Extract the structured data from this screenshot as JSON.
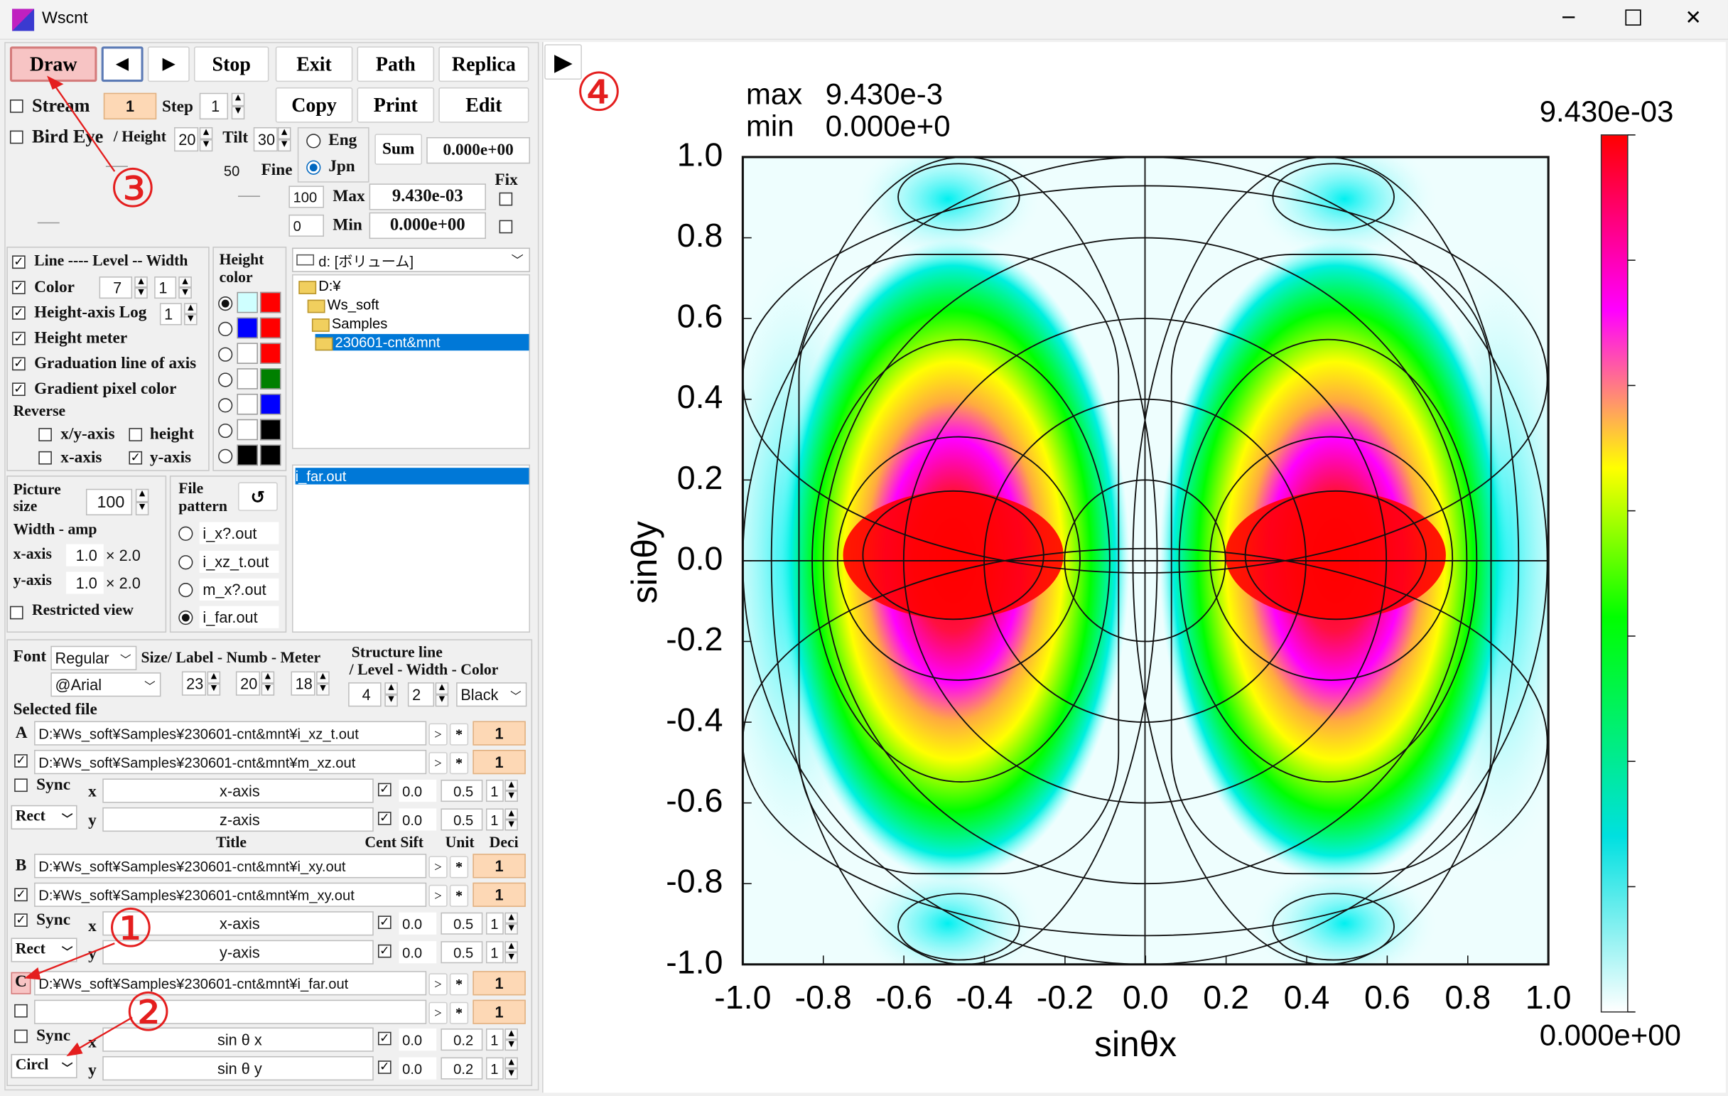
{
  "window": {
    "title": "Wscnt",
    "min_glyph": "─",
    "max_glyph": "☐",
    "close_glyph": "✕"
  },
  "toolbar": {
    "draw": "Draw",
    "prev": "◀",
    "next": "▶",
    "stop": "Stop",
    "exit": "Exit",
    "path": "Path",
    "replica": "Replica",
    "copy": "Copy",
    "print": "Print",
    "edit": "Edit",
    "sum": "Sum",
    "run": "▶"
  },
  "stream": {
    "label": "Stream",
    "value": "1",
    "step_label": "Step",
    "step_value": "1"
  },
  "bird": {
    "label": "Bird Eye",
    "height_label": "/ Height",
    "height_value": "20",
    "tilt_label": "Tilt",
    "tilt_value": "30",
    "fine_value": "50",
    "fine_label": "Fine"
  },
  "lang": {
    "eng": "Eng",
    "jpn": "Jpn"
  },
  "sum_value": "0.000e+00",
  "fix": {
    "label": "Fix",
    "max_left": "100",
    "max_label": "Max",
    "max_value": "9.430e-03",
    "min_left": "0",
    "min_label": "Min",
    "min_value": "0.000e+00"
  },
  "options": {
    "line": "Line ---- Level -- Width",
    "color": "Color",
    "color_v1": "7",
    "color_v2": "1",
    "log": "Height-axis Log",
    "log_v": "1",
    "meter": "Height meter",
    "grad": "Graduation line of axis",
    "gradient": "Gradient pixel color",
    "reverse": "Reverse",
    "xy": "x/y-axis",
    "height": "height",
    "x": "x-axis",
    "y": "y-axis"
  },
  "height_color": {
    "label": "Height color"
  },
  "drive": "d: [ボリューム]",
  "tree": [
    "D:¥",
    "Ws_soft",
    "Samples",
    "230601-cnt&mnt"
  ],
  "files": [
    "i_far.out"
  ],
  "picture": {
    "label": "Picture size",
    "value": "100",
    "wa": "Width - amp",
    "xaxis": "x-axis",
    "xv": "1.0",
    "xm": "× 2.0",
    "yaxis": "y-axis",
    "yv": "1.0",
    "ym": "× 2.0",
    "restricted": "Restricted view"
  },
  "pattern": {
    "label": "File pattern",
    "refresh": "↺",
    "opts": [
      "i_x?.out",
      "i_xz_t.out",
      "m_x?.out",
      "i_far.out"
    ]
  },
  "font": {
    "label": "Font",
    "style": "Regular",
    "face": "@Arial",
    "size_label": "Size/ Label - Numb - Meter",
    "s1": "23",
    "s2": "20",
    "s3": "18",
    "struct_label": "Structure line",
    "struct_sub": "/ Level - Width - Color",
    "lv": "4",
    "wv": "2",
    "cv": "Black"
  },
  "selected": {
    "label": "Selected file",
    "title": "Title",
    "cols": "Cent Sift",
    "unit": "Unit",
    "deci": "Deci"
  },
  "rowsA": {
    "tag": "A",
    "file1": "D:¥Ws_soft¥Samples¥230601-cnt&mnt¥i_xz_t.out",
    "file2": "D:¥Ws_soft¥Samples¥230601-cnt&mnt¥m_xz.out",
    "n1": "1",
    "n2": "1",
    "sync": "Sync",
    "mode": "Rect",
    "xt": "x-axis",
    "yt": "z-axis",
    "c": "0.0",
    "u": "0.5",
    "d": "1"
  },
  "rowsB": {
    "tag": "B",
    "file1": "D:¥Ws_soft¥Samples¥230601-cnt&mnt¥i_xy.out",
    "file2": "D:¥Ws_soft¥Samples¥230601-cnt&mnt¥m_xy.out",
    "n1": "1",
    "n2": "1",
    "sync": "Sync",
    "mode": "Rect",
    "xt": "x-axis",
    "yt": "y-axis",
    "c": "0.0",
    "u": "0.5",
    "d": "1"
  },
  "rowsC": {
    "tag": "C",
    "file1": "D:¥Ws_soft¥Samples¥230601-cnt&mnt¥i_far.out",
    "file2": "",
    "n1": "1",
    "n2": "1",
    "sync": "Sync",
    "mode": "Circl",
    "xt": "sin θ x",
    "yt": "sin θ y",
    "c": "0.0",
    "u": "0.2",
    "d": "1"
  },
  "axis_letters": {
    "x": "x",
    "y": "y"
  },
  "row_btn": {
    "gt": ">",
    "star": "*"
  },
  "annotations": [
    "①",
    "②",
    "③",
    "④"
  ],
  "plot": {
    "max_label": "max",
    "max_value": "9.430e-3",
    "min_label": "min",
    "min_value": "0.000e+0",
    "xlabel": "sinθx",
    "ylabel": "sinθy",
    "cbar_max": "9.430e-03",
    "cbar_min": "0.000e+00"
  },
  "chart_data": {
    "type": "heatmap",
    "xlabel": "sinθx",
    "ylabel": "sinθy",
    "xlim": [
      -1.0,
      1.0
    ],
    "ylim": [
      -1.0,
      1.0
    ],
    "xticks": [
      "-1.0",
      "-0.8",
      "-0.6",
      "-0.4",
      "-0.2",
      "0.0",
      "0.2",
      "0.4",
      "0.6",
      "0.8",
      "1.0"
    ],
    "yticks": [
      "1.0",
      "0.8",
      "0.6",
      "0.4",
      "0.2",
      "0.0",
      "-0.2",
      "-0.4",
      "-0.6",
      "-0.8",
      "-1.0"
    ],
    "max": "9.430e-3",
    "min": "0.000e+0",
    "colorbar": {
      "max": "9.430e-03",
      "min": "0.000e+00",
      "colors": [
        "#ffffff",
        "#00e0e0",
        "#00ff00",
        "#ffff00",
        "#ff00ff",
        "#ff0000"
      ]
    },
    "peaks": [
      {
        "x": -0.55,
        "y": 0.0
      },
      {
        "x": 0.55,
        "y": 0.0
      }
    ],
    "polar_circles": [
      0.2,
      0.4,
      0.6,
      0.8,
      1.0
    ]
  }
}
